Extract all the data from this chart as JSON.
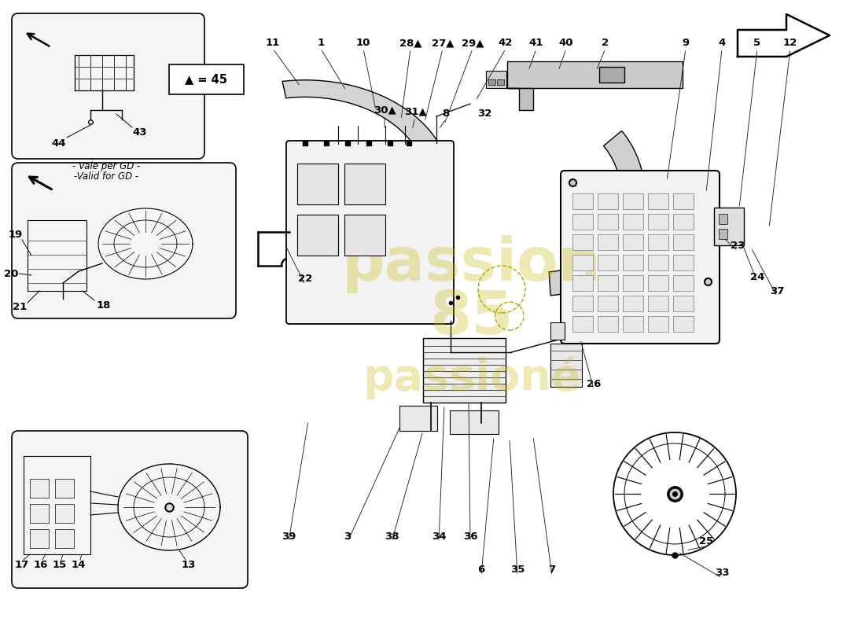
{
  "background_color": "#ffffff",
  "figure_width": 11.0,
  "figure_height": 8.0,
  "dpi": 100,
  "watermark_lines": [
    "passion",
    "85",
    "passioné"
  ],
  "watermark_color": "#c8b400",
  "watermark_alpha": 0.3,
  "legend_text": "▲ = 45",
  "note_line1": "- Vale per GD -",
  "note_line2": "-Valid for GD -",
  "labels": [
    [
      "11",
      347,
      745,
      382,
      690
    ],
    [
      "1",
      408,
      745,
      440,
      685
    ],
    [
      "10",
      462,
      745,
      478,
      660
    ],
    [
      "28▲",
      522,
      745,
      510,
      648
    ],
    [
      "27▲",
      563,
      745,
      540,
      645
    ],
    [
      "29▲",
      601,
      745,
      565,
      642
    ],
    [
      "42",
      643,
      745,
      605,
      672
    ],
    [
      "41",
      682,
      745,
      672,
      710
    ],
    [
      "40",
      720,
      745,
      710,
      710
    ],
    [
      "2",
      770,
      745,
      758,
      710
    ],
    [
      "9",
      872,
      745,
      848,
      570
    ],
    [
      "4",
      918,
      745,
      898,
      555
    ],
    [
      "5",
      963,
      745,
      940,
      535
    ],
    [
      "12",
      1005,
      745,
      978,
      510
    ],
    [
      "30▲",
      489,
      660,
      489,
      635
    ],
    [
      "31▲",
      528,
      658,
      524,
      635
    ],
    [
      "8",
      567,
      656,
      558,
      635
    ],
    [
      "32",
      616,
      656,
      616,
      648
    ],
    [
      "22",
      388,
      445,
      362,
      490
    ],
    [
      "3",
      442,
      118,
      510,
      260
    ],
    [
      "39",
      367,
      118,
      392,
      265
    ],
    [
      "38",
      498,
      118,
      538,
      252
    ],
    [
      "34",
      558,
      118,
      565,
      285
    ],
    [
      "36",
      598,
      118,
      596,
      290
    ],
    [
      "6",
      612,
      75,
      628,
      245
    ],
    [
      "35",
      658,
      75,
      648,
      242
    ],
    [
      "7",
      702,
      75,
      678,
      245
    ],
    [
      "26",
      755,
      312,
      738,
      368
    ],
    [
      "23",
      938,
      488,
      912,
      505
    ],
    [
      "24",
      963,
      448,
      942,
      495
    ],
    [
      "25",
      898,
      112,
      872,
      100
    ],
    [
      "33",
      918,
      72,
      862,
      98
    ],
    [
      "37",
      988,
      430,
      955,
      485
    ]
  ]
}
